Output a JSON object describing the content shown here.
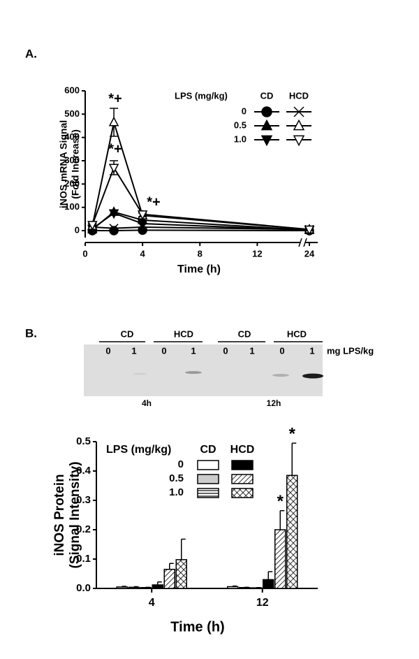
{
  "chart_data": [
    {
      "type": "line",
      "title": "A.",
      "ylabel": [
        "iNOS mRNA Signal",
        "(Fold Increase)"
      ],
      "xlabel": "Time (h)",
      "x": [
        0.5,
        2,
        4,
        24
      ],
      "xlim": [
        0,
        25
      ],
      "xbreak": [
        15,
        23.5
      ],
      "xticks": [
        0,
        4,
        8,
        12,
        24
      ],
      "ylim": [
        -30,
        600
      ],
      "yticks": [
        0,
        100,
        200,
        300,
        400,
        500,
        600
      ],
      "legend": {
        "title": "LPS (mg/kg)",
        "columns": [
          "CD",
          "HCD"
        ],
        "rows": [
          "0",
          "0.5",
          "1.0"
        ]
      },
      "series": [
        {
          "marker": "circle",
          "filled": true,
          "color": "#000000",
          "values": [
            0,
            0,
            2,
            0
          ]
        },
        {
          "marker": "triangle-up",
          "filled": true,
          "color": "#000000",
          "values": [
            5,
            80,
            45,
            2
          ]
        },
        {
          "marker": "triangle-down",
          "filled": true,
          "color": "#000000",
          "values": [
            8,
            75,
            30,
            2
          ]
        },
        {
          "marker": "x",
          "filled": false,
          "color": "#000000",
          "values": [
            15,
            10,
            15,
            5
          ]
        },
        {
          "marker": "triangle-up",
          "filled": false,
          "color": "#000000",
          "values": [
            20,
            465,
            65,
            5
          ],
          "errors": [
            5,
            60,
            10,
            5
          ]
        },
        {
          "marker": "triangle-down",
          "filled": false,
          "color": "#000000",
          "values": [
            25,
            270,
            70,
            5
          ],
          "errors": [
            5,
            30,
            10,
            5
          ]
        }
      ],
      "annotations": [
        "*+",
        "*+",
        "*+"
      ]
    },
    {
      "type": "bar",
      "title": "B.",
      "ylabel": [
        "iNOS Protein",
        "(Signal Intensity)"
      ],
      "xlabel": "Time (h)",
      "categories": [
        "4",
        "12"
      ],
      "ylim": [
        0,
        0.5
      ],
      "yticks": [
        {
          "value": 0,
          "label": "0.0"
        },
        0.1,
        0.2,
        0.3,
        0.4,
        0.5
      ],
      "legend": {
        "title": "LPS (mg/kg)",
        "columns": [
          "CD",
          "HCD"
        ],
        "rows": [
          "0",
          "0.5",
          "1.0"
        ]
      },
      "series": [
        {
          "color": "#ffffff",
          "pattern": "none",
          "values": [
            0.005,
            0.006
          ],
          "errors": [
            0.002,
            0.002
          ]
        },
        {
          "color": "#cccccc",
          "pattern": "none",
          "values": [
            0.004,
            0.003
          ],
          "errors": [
            0.002,
            0.001
          ]
        },
        {
          "color": "#ffffff",
          "pattern": "hlines",
          "values": [
            0.003,
            0.002
          ],
          "errors": [
            0.001,
            0.001
          ]
        },
        {
          "color": "#000000",
          "pattern": "none",
          "values": [
            0.012,
            0.03
          ],
          "errors": [
            0.01,
            0.027
          ]
        },
        {
          "color": "#ffffff",
          "pattern": "diag",
          "values": [
            0.065,
            0.2
          ],
          "errors": [
            0.02,
            0.065
          ]
        },
        {
          "color": "#ffffff",
          "pattern": "cross",
          "values": [
            0.098,
            0.385
          ],
          "errors": [
            0.07,
            0.11
          ]
        }
      ],
      "annotations": [
        "*",
        "*"
      ]
    }
  ],
  "blot": {
    "groups": [
      "CD",
      "HCD",
      "CD",
      "HCD"
    ],
    "doses": [
      "0",
      "1",
      "0",
      "1",
      "0",
      "1",
      "0",
      "1"
    ],
    "unit": "mg LPS/kg",
    "times": [
      "4h",
      "12h"
    ]
  }
}
